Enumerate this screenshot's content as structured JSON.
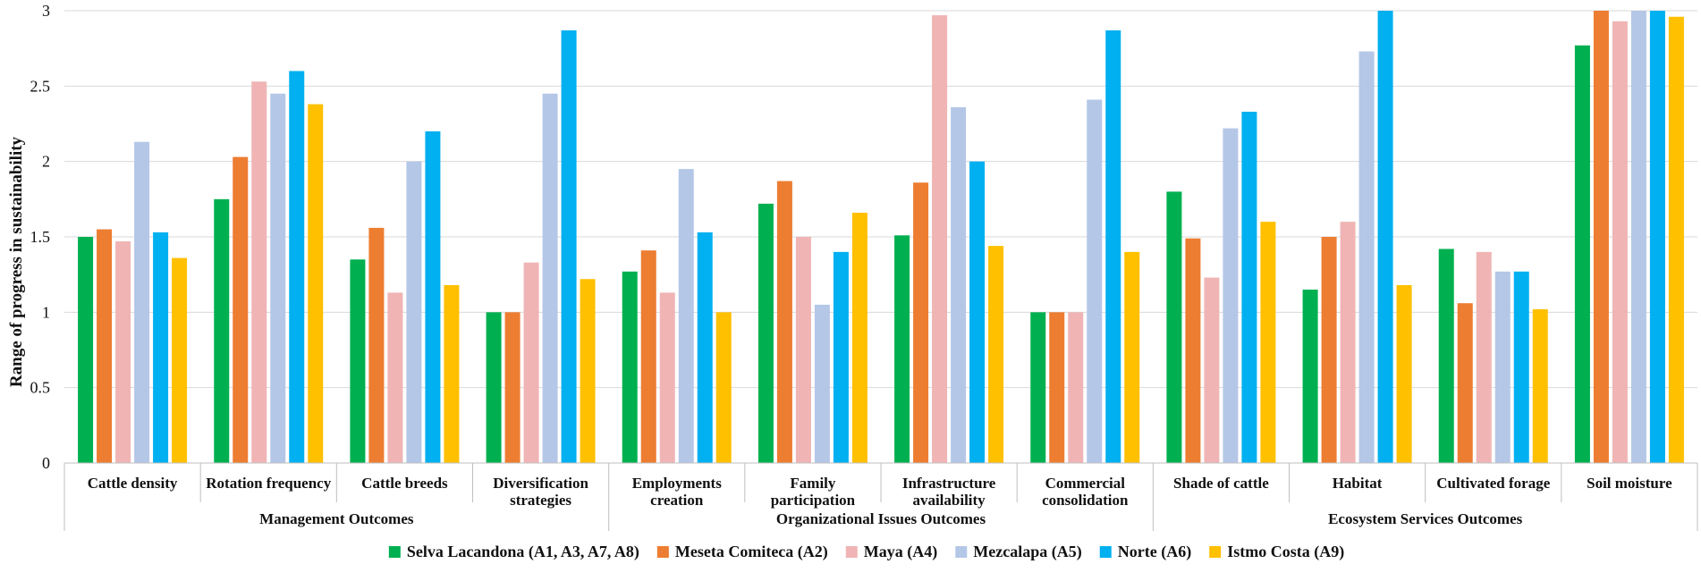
{
  "chart_data": {
    "type": "bar",
    "title": "",
    "xlabel": "",
    "ylabel": "Range of progress in sustainability",
    "ylim": [
      0,
      3
    ],
    "yticks": [
      "0",
      "0.5",
      "1",
      "1.5",
      "2",
      "2.5",
      "3"
    ],
    "grid": true,
    "legend_position": "bottom",
    "categories": [
      "Cattle density",
      "Rotation frequency",
      "Cattle breeds",
      [
        "Diversification",
        "strategies"
      ],
      [
        "Employments",
        "creation"
      ],
      [
        "Family",
        "participation"
      ],
      [
        "Infrastructure",
        "availability"
      ],
      [
        "Commercial",
        "consolidation"
      ],
      "Shade of cattle",
      "Habitat",
      "Cultivated forage",
      "Soil moisture"
    ],
    "groups": [
      {
        "label": "Management Outcomes",
        "span": 4
      },
      {
        "label": "Organizational Issues Outcomes",
        "span": 4
      },
      {
        "label": "Ecosystem Services Outcomes",
        "span": 4
      }
    ],
    "series": [
      {
        "name": "Selva Lacandona (A1, A3, A7, A8)",
        "color": "#00b050",
        "values": [
          1.5,
          1.75,
          1.35,
          1.0,
          1.27,
          1.72,
          1.51,
          1.0,
          1.8,
          1.15,
          1.42,
          2.77
        ]
      },
      {
        "name": "Meseta Comiteca (A2)",
        "color": "#ed7d31",
        "values": [
          1.55,
          2.03,
          1.56,
          1.0,
          1.41,
          1.87,
          1.86,
          1.0,
          1.49,
          1.5,
          1.06,
          3.0
        ]
      },
      {
        "name": "Maya (A4)",
        "color": "#f0b4b4",
        "values": [
          1.47,
          2.53,
          1.13,
          1.33,
          1.13,
          1.5,
          2.97,
          1.0,
          1.23,
          1.6,
          1.4,
          2.93
        ]
      },
      {
        "name": "Mezcalapa (A5)",
        "color": "#b4c7e7",
        "values": [
          2.13,
          2.45,
          2.0,
          2.45,
          1.95,
          1.05,
          2.36,
          2.41,
          2.22,
          2.73,
          1.27,
          3.0
        ]
      },
      {
        "name": "Norte (A6)",
        "color": "#00b0f0",
        "values": [
          1.53,
          2.6,
          2.2,
          2.87,
          1.53,
          1.4,
          2.0,
          2.87,
          2.33,
          3.0,
          1.27,
          3.0
        ]
      },
      {
        "name": "Istmo Costa (A9)",
        "color": "#ffc000",
        "values": [
          1.36,
          2.38,
          1.18,
          1.22,
          1.0,
          1.66,
          1.44,
          1.4,
          1.6,
          1.18,
          1.02,
          2.96
        ]
      }
    ]
  }
}
